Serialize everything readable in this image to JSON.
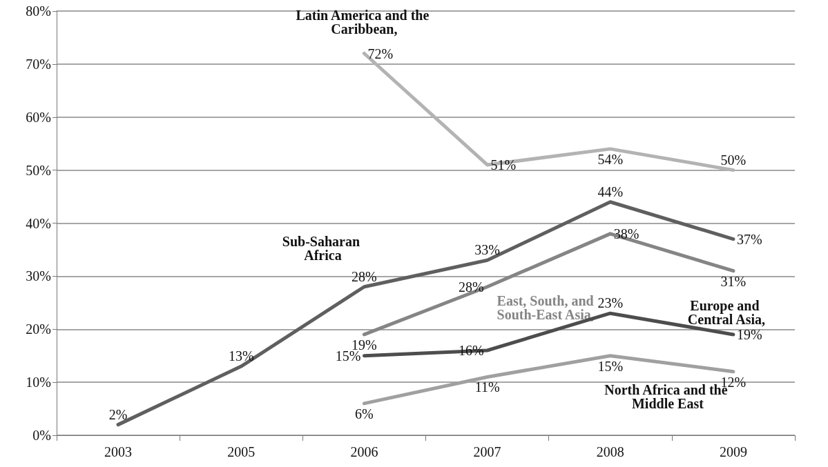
{
  "chart_data": {
    "type": "line",
    "categories": [
      "2003",
      "2005",
      "2006",
      "2007",
      "2008",
      "2009"
    ],
    "series": [
      {
        "name": "Latin America and the Caribbean,",
        "color": "#b3b3b3",
        "values": [
          null,
          null,
          72,
          51,
          54,
          50
        ],
        "value_labels": [
          null,
          null,
          "72%",
          "51%",
          "54%",
          "50%"
        ]
      },
      {
        "name": "Sub-Saharan Africa",
        "color": "#5f5f5f",
        "values": [
          2,
          13,
          28,
          33,
          44,
          37
        ],
        "value_labels": [
          "2%",
          "13%",
          "28%",
          "33%",
          "44%",
          "37%"
        ]
      },
      {
        "name": "East, South, and South-East Asia,",
        "color": "#858585",
        "values": [
          null,
          null,
          19,
          28,
          38,
          31
        ],
        "value_labels": [
          null,
          null,
          "19%",
          "28%",
          "38%",
          "31%"
        ]
      },
      {
        "name": "Europe and Central Asia,",
        "color": "#4d4d4d",
        "values": [
          null,
          null,
          15,
          16,
          23,
          19
        ],
        "value_labels": [
          null,
          null,
          "15%",
          "16%",
          "23%",
          "19%"
        ]
      },
      {
        "name": "North Africa and the Middle East",
        "color": "#a0a0a0",
        "values": [
          null,
          null,
          6,
          11,
          15,
          12
        ],
        "value_labels": [
          null,
          null,
          "6%",
          "11%",
          "15%",
          "12%"
        ]
      }
    ],
    "ylim": [
      0,
      80
    ],
    "yticks": [
      {
        "value": 0,
        "label": "0%"
      },
      {
        "value": 10,
        "label": "10%"
      },
      {
        "value": 20,
        "label": "20%"
      },
      {
        "value": 30,
        "label": "30%"
      },
      {
        "value": 40,
        "label": "40%"
      },
      {
        "value": 50,
        "label": "50%"
      },
      {
        "value": 60,
        "label": "60%"
      },
      {
        "value": 70,
        "label": "70%"
      },
      {
        "value": 80,
        "label": "80%"
      }
    ],
    "grid": "y",
    "legend": false,
    "marker": "none",
    "line_style": "solid"
  }
}
